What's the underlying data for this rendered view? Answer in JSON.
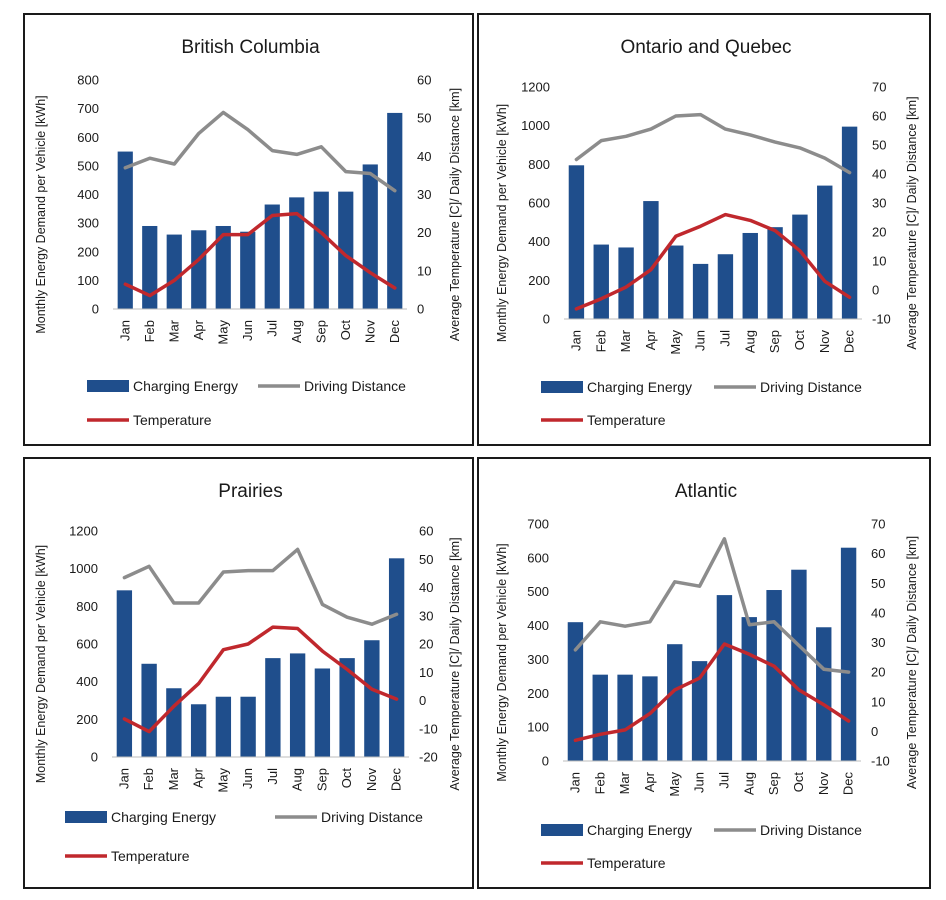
{
  "colors": {
    "bar": "#1f4e8c",
    "distance": "#8c8c8c",
    "temperature": "#c0282d"
  },
  "chart_data": [
    {
      "type": "bar+line",
      "title": "British Columbia",
      "categories": [
        "Jan",
        "Feb",
        "Mar",
        "Apr",
        "May",
        "Jun",
        "Jul",
        "Aug",
        "Sep",
        "Oct",
        "Nov",
        "Dec"
      ],
      "ylabel": "Monthly  Energy Demand  per Vehicle  [kWh]",
      "y2label": "Average Temperature [C]/ Daily Distance [km]",
      "ylim": [
        0,
        800
      ],
      "yticks": [
        0,
        100,
        200,
        300,
        400,
        500,
        600,
        700,
        800
      ],
      "y2lim": [
        0,
        60
      ],
      "y2ticks": [
        0,
        10,
        20,
        30,
        40,
        50,
        60
      ],
      "series": [
        {
          "name": "Charging Energy",
          "kind": "bar",
          "axis": "primary",
          "values": [
            550,
            290,
            260,
            275,
            290,
            270,
            365,
            390,
            410,
            410,
            505,
            685
          ]
        },
        {
          "name": "Driving Distance",
          "kind": "line",
          "axis": "secondary",
          "values": [
            37,
            39.5,
            38,
            46,
            51.5,
            47,
            41.5,
            40.5,
            42.5,
            36,
            35.5,
            31
          ]
        },
        {
          "name": "Temperature",
          "kind": "line",
          "axis": "secondary",
          "values": [
            6.5,
            3.5,
            7.5,
            13,
            19.5,
            19.5,
            24.5,
            25,
            20,
            14,
            9.5,
            5.5
          ]
        }
      ]
    },
    {
      "type": "bar+line",
      "title": "Ontario and Quebec",
      "categories": [
        "Jan",
        "Feb",
        "Mar",
        "Apr",
        "May",
        "Jun",
        "Jul",
        "Aug",
        "Sep",
        "Oct",
        "Nov",
        "Dec"
      ],
      "ylabel": "Monthly  Energy  Demand  per Vehicle  [kWh]",
      "y2label": "Average Temperature [C]/ Daily Distance [km]",
      "ylim": [
        0,
        1200
      ],
      "yticks": [
        0,
        200,
        400,
        600,
        800,
        1000,
        1200
      ],
      "y2lim": [
        -10,
        70
      ],
      "y2ticks": [
        -10,
        0,
        10,
        20,
        30,
        40,
        50,
        60,
        70
      ],
      "series": [
        {
          "name": "Charging Energy",
          "kind": "bar",
          "axis": "primary",
          "values": [
            795,
            385,
            370,
            610,
            380,
            285,
            335,
            445,
            475,
            540,
            690,
            995
          ]
        },
        {
          "name": "Driving Distance",
          "kind": "line",
          "axis": "secondary",
          "values": [
            45,
            51.5,
            53,
            55.5,
            60,
            60.5,
            55.5,
            53.5,
            51,
            49,
            45.5,
            40.5
          ]
        },
        {
          "name": "Temperature",
          "kind": "line",
          "axis": "secondary",
          "values": [
            -6.5,
            -3,
            1,
            7,
            18.5,
            22,
            26,
            24,
            20.5,
            13.5,
            3,
            -2.5
          ]
        }
      ]
    },
    {
      "type": "bar+line",
      "title": "Prairies",
      "categories": [
        "Jan",
        "Feb",
        "Mar",
        "Apr",
        "May",
        "Jun",
        "Jul",
        "Aug",
        "Sep",
        "Oct",
        "Nov",
        "Dec"
      ],
      "ylabel": "Monthly  Energy Demand    per Vehicle  [kWh]",
      "y2label": "Average Temperature [C]/ Daily Distance [km]",
      "ylim": [
        0,
        1200
      ],
      "yticks": [
        0,
        200,
        400,
        600,
        800,
        1000,
        1200
      ],
      "y2lim": [
        -20,
        60
      ],
      "y2ticks": [
        -20,
        -10,
        0,
        10,
        20,
        30,
        40,
        50,
        60
      ],
      "series": [
        {
          "name": "Charging Energy",
          "kind": "bar",
          "axis": "primary",
          "values": [
            885,
            495,
            365,
            280,
            320,
            320,
            525,
            550,
            470,
            525,
            620,
            1055
          ]
        },
        {
          "name": "Driving Distance",
          "kind": "line",
          "axis": "secondary",
          "values": [
            43.5,
            47.5,
            34.5,
            34.5,
            45.5,
            46,
            46,
            53.5,
            34,
            29.5,
            27,
            30.5
          ]
        },
        {
          "name": "Temperature",
          "kind": "line",
          "axis": "secondary",
          "values": [
            -6.5,
            -11,
            -2,
            6,
            18,
            20,
            26,
            25.5,
            17.5,
            11,
            4,
            0.5
          ]
        }
      ]
    },
    {
      "type": "bar+line",
      "title": "Atlantic",
      "categories": [
        "Jan",
        "Feb",
        "Mar",
        "Apr",
        "May",
        "Jun",
        "Jul",
        "Aug",
        "Sep",
        "Oct",
        "Nov",
        "Dec"
      ],
      "ylabel": "Monthly  Energy  Demand   per Vehicle   [kWh]",
      "y2label": "Average Temperature [C]/ Daily Distance [km]",
      "ylim": [
        0,
        700
      ],
      "yticks": [
        0,
        100,
        200,
        300,
        400,
        500,
        600,
        700
      ],
      "y2lim": [
        -10,
        70
      ],
      "y2ticks": [
        -10,
        0,
        10,
        20,
        30,
        40,
        50,
        60,
        70
      ],
      "series": [
        {
          "name": "Charging Energy",
          "kind": "bar",
          "axis": "primary",
          "values": [
            410,
            255,
            255,
            250,
            345,
            295,
            490,
            425,
            505,
            565,
            395,
            630
          ]
        },
        {
          "name": "Driving Distance",
          "kind": "line",
          "axis": "secondary",
          "values": [
            27.5,
            37,
            35.5,
            37,
            50.5,
            49,
            65,
            36,
            37,
            29,
            21,
            20
          ]
        },
        {
          "name": "Temperature",
          "kind": "line",
          "axis": "secondary",
          "values": [
            -3,
            -1,
            0.5,
            6,
            14,
            18,
            29.5,
            26,
            22,
            14,
            9,
            3.5
          ]
        }
      ]
    }
  ]
}
